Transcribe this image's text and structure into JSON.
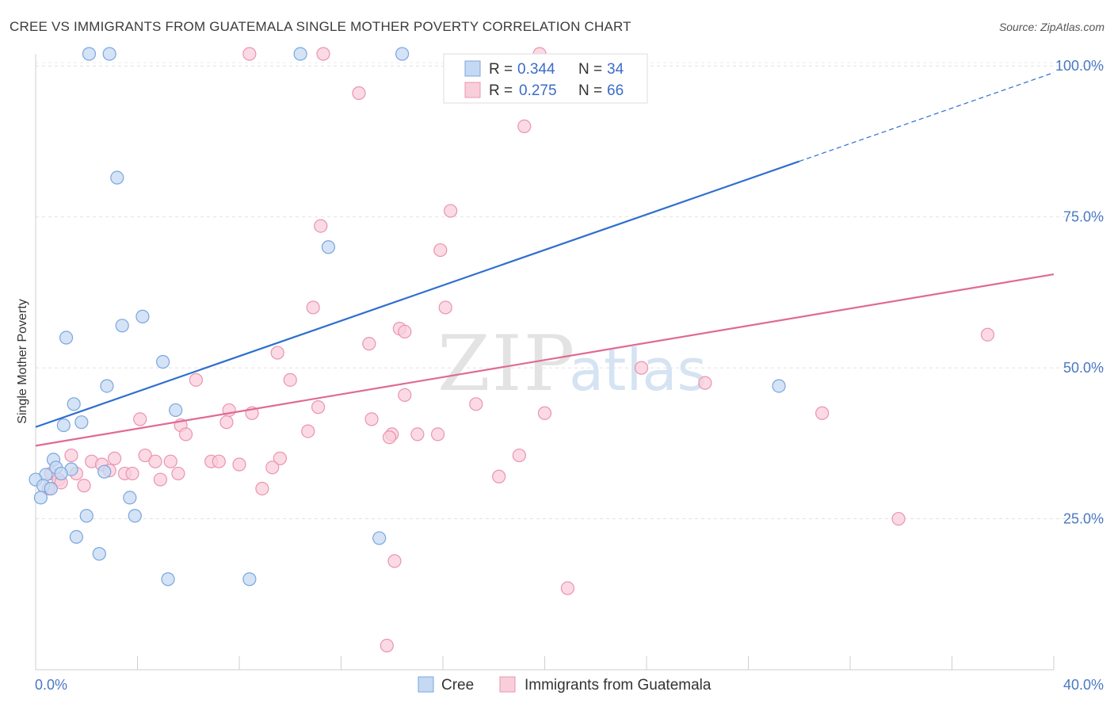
{
  "chart_data": {
    "type": "scatter",
    "title": "CREE VS IMMIGRANTS FROM GUATEMALA SINGLE MOTHER POVERTY CORRELATION CHART",
    "source": "Source: ZipAtlas.com",
    "ylabel": "Single Mother Poverty",
    "xlabel": "",
    "xlim": [
      0,
      40
    ],
    "ylim": [
      0,
      102
    ],
    "x_tick_labels": [
      "0.0%",
      "40.0%"
    ],
    "y_ticks": [
      {
        "value": 25,
        "label": "25.0%"
      },
      {
        "value": 50,
        "label": "50.0%"
      },
      {
        "value": 75,
        "label": "75.0%"
      },
      {
        "value": 100,
        "label": "100.0%"
      }
    ],
    "watermark": {
      "part1": "ZIP",
      "part2": "atlas"
    },
    "legend": {
      "r_label": "R =",
      "n_label": "N =",
      "entries": [
        {
          "r": "0.344",
          "n": "34"
        },
        {
          "r": "0.275",
          "n": "66"
        }
      ]
    },
    "colors": {
      "cree_fill": "#c5d9f3",
      "cree_stroke": "#7aa6dd",
      "cree_line": "#2f6fcf",
      "guat_fill": "#f9cedb",
      "guat_stroke": "#e994b0",
      "guat_line": "#e06a93"
    },
    "series": [
      {
        "name": "Cree",
        "trend": {
          "x0": 0,
          "y0": 40.2,
          "x1": 30,
          "y1": 84.2,
          "dash_to_x": 40,
          "dash_to_y": 98.9
        },
        "points": [
          [
            2.1,
            102
          ],
          [
            2.9,
            102
          ],
          [
            10.4,
            102
          ],
          [
            14.4,
            102
          ],
          [
            3.2,
            81.5
          ],
          [
            11.5,
            70
          ],
          [
            4.2,
            58.5
          ],
          [
            3.4,
            57
          ],
          [
            1.2,
            55
          ],
          [
            5.0,
            51
          ],
          [
            2.8,
            47
          ],
          [
            29.2,
            47
          ],
          [
            1.5,
            44
          ],
          [
            5.5,
            43
          ],
          [
            1.8,
            41
          ],
          [
            1.1,
            40.5
          ],
          [
            0.7,
            34.8
          ],
          [
            0.8,
            33.5
          ],
          [
            1.4,
            33.2
          ],
          [
            2.7,
            32.8
          ],
          [
            1.0,
            32.5
          ],
          [
            0.4,
            32.3
          ],
          [
            0.0,
            31.5
          ],
          [
            0.3,
            30.5
          ],
          [
            0.6,
            30.0
          ],
          [
            0.2,
            28.5
          ],
          [
            3.7,
            28.5
          ],
          [
            2.0,
            25.5
          ],
          [
            3.9,
            25.5
          ],
          [
            1.6,
            22
          ],
          [
            2.5,
            19.2
          ],
          [
            13.5,
            21.8
          ],
          [
            5.2,
            15
          ],
          [
            8.4,
            15
          ]
        ]
      },
      {
        "name": "Immigrants from Guatemala",
        "trend": {
          "x0": 0,
          "y0": 37.1,
          "x1": 40,
          "y1": 65.5
        },
        "points": [
          [
            8.4,
            102
          ],
          [
            11.3,
            102
          ],
          [
            19.8,
            102
          ],
          [
            12.7,
            95.5
          ],
          [
            19.2,
            90
          ],
          [
            16.3,
            76
          ],
          [
            11.2,
            73.5
          ],
          [
            15.9,
            69.5
          ],
          [
            10.9,
            60
          ],
          [
            16.1,
            60
          ],
          [
            14.3,
            56.5
          ],
          [
            14.5,
            56
          ],
          [
            37.4,
            55.5
          ],
          [
            13.1,
            54
          ],
          [
            9.5,
            52.5
          ],
          [
            23.8,
            50
          ],
          [
            6.3,
            48
          ],
          [
            10.0,
            48
          ],
          [
            26.3,
            47.5
          ],
          [
            14.5,
            45.5
          ],
          [
            11.1,
            43.5
          ],
          [
            17.3,
            44
          ],
          [
            7.6,
            43
          ],
          [
            8.5,
            42.5
          ],
          [
            20.0,
            42.5
          ],
          [
            30.9,
            42.5
          ],
          [
            4.1,
            41.5
          ],
          [
            13.2,
            41.5
          ],
          [
            7.5,
            41
          ],
          [
            5.7,
            40.5
          ],
          [
            10.7,
            39.5
          ],
          [
            5.9,
            39
          ],
          [
            14.0,
            39
          ],
          [
            15.0,
            39
          ],
          [
            15.8,
            39
          ],
          [
            13.9,
            38.5
          ],
          [
            1.4,
            35.5
          ],
          [
            3.1,
            35
          ],
          [
            4.3,
            35.5
          ],
          [
            19.0,
            35.5
          ],
          [
            2.2,
            34.5
          ],
          [
            4.7,
            34.5
          ],
          [
            5.3,
            34.5
          ],
          [
            6.9,
            34.5
          ],
          [
            7.2,
            34.5
          ],
          [
            9.6,
            35
          ],
          [
            2.6,
            34
          ],
          [
            8.0,
            34
          ],
          [
            9.3,
            33.5
          ],
          [
            2.9,
            33
          ],
          [
            3.5,
            32.5
          ],
          [
            0.6,
            32.5
          ],
          [
            1.6,
            32.5
          ],
          [
            5.6,
            32.5
          ],
          [
            3.8,
            32.5
          ],
          [
            4.9,
            31.5
          ],
          [
            18.2,
            32
          ],
          [
            0.9,
            31.5
          ],
          [
            1.0,
            31
          ],
          [
            1.9,
            30.5
          ],
          [
            0.5,
            30
          ],
          [
            8.9,
            30
          ],
          [
            33.9,
            25
          ],
          [
            14.1,
            18
          ],
          [
            20.9,
            13.5
          ],
          [
            13.8,
            4
          ]
        ]
      }
    ]
  }
}
